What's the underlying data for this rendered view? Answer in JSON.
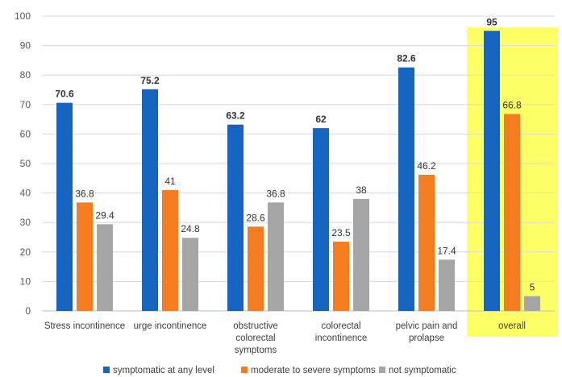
{
  "chart_data": {
    "type": "bar",
    "categories": [
      [
        "Stress incontinence"
      ],
      [
        "urge incontinence"
      ],
      [
        "obstructive",
        "colorectal",
        "symptoms"
      ],
      [
        "colorectal",
        "incontinence"
      ],
      [
        "pelvic pain and",
        "prolapse"
      ],
      [
        "overall"
      ]
    ],
    "series": [
      {
        "name": "symptomatic at any level",
        "color": "#1565c0",
        "values": [
          70.6,
          75.2,
          63.2,
          62,
          82.6,
          95
        ],
        "labels": [
          "70.6",
          "75.2",
          "63.2",
          "62",
          "82.6",
          "95"
        ],
        "label_bold": true
      },
      {
        "name": "moderate to severe symptoms",
        "color": "#f57c1f",
        "values": [
          36.8,
          41,
          28.6,
          23.5,
          46.2,
          66.8
        ],
        "labels": [
          "36.8",
          "41",
          "28.6",
          "23.5",
          "46.2",
          "66.8"
        ],
        "label_bold": false
      },
      {
        "name": "not symptomatic",
        "color": "#a5a5a5",
        "values": [
          29.4,
          24.8,
          36.8,
          38,
          17.4,
          5
        ],
        "labels": [
          "29.4",
          "24.8",
          "36.8",
          "38",
          "17.4",
          "5"
        ],
        "label_bold": false
      }
    ],
    "ylim": [
      0,
      100
    ],
    "yticks": [
      "0",
      "10",
      "20",
      "30",
      "40",
      "50",
      "60",
      "70",
      "80",
      "90",
      "100"
    ],
    "grid": true,
    "highlight_category": 5,
    "highlight_color": "#ffff66",
    "legend_position": "bottom"
  }
}
